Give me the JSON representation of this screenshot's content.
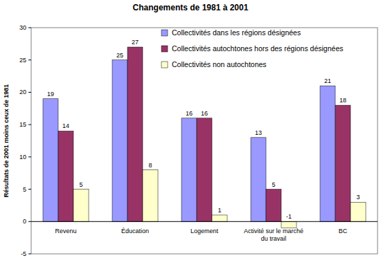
{
  "chart_data": {
    "type": "bar",
    "title": "Changements de 1981 à 2001",
    "y_label": "Résultats de 2001 moins ceux de 1981",
    "categories": [
      "Revenu",
      "Éducation",
      "Logement",
      "Activité sur le marché du travail",
      "BC"
    ],
    "series": [
      {
        "name": "Collectivités dans les régions désignées",
        "color": "#9999ff",
        "values": [
          19,
          25,
          16,
          13,
          21
        ]
      },
      {
        "name": "Collectivités autochtones hors des régions désignées",
        "color": "#993366",
        "values": [
          14,
          27,
          16,
          5,
          18
        ]
      },
      {
        "name": "Collectivités non autochtones",
        "color": "#ffffcc",
        "values": [
          5,
          8,
          1,
          -1,
          3
        ]
      }
    ],
    "ylim": [
      -5,
      30
    ],
    "yticks": [
      -5,
      0,
      5,
      10,
      15,
      20,
      25,
      30
    ],
    "grid": false,
    "legend": "top-right",
    "data_labels": true
  }
}
